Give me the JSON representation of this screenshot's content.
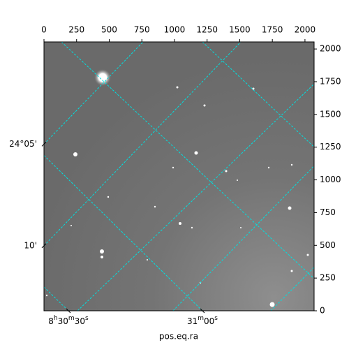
{
  "chart_data": {
    "type": "image",
    "xlabel": "pos.eq.ra",
    "xlim": [
      0,
      2070
    ],
    "ylim": [
      0,
      2054
    ],
    "xticks": [
      0,
      250,
      500,
      750,
      1000,
      1250,
      1500,
      1750,
      2000
    ],
    "yticks": [
      0,
      250,
      500,
      750,
      1000,
      1250,
      1500,
      1750,
      2000
    ],
    "ra_ticks": [
      {
        "value": 187,
        "label": "8h30m30s"
      },
      {
        "value": 1214,
        "label": "31m00s"
      }
    ],
    "dec_ticks": [
      {
        "value": 1273,
        "label": "24°05'"
      },
      {
        "value": 497,
        "label": "10'"
      }
    ],
    "grid": true,
    "grid_color": "#00e0e0",
    "ra_lines": [
      {
        "x": [
          134,
          2070
        ],
        "y": [
          2054,
          246
        ]
      },
      {
        "x": [
          0,
          1214
        ],
        "y": [
          1187,
          0
        ]
      },
      {
        "x": [
          1214,
          2070
        ],
        "y": [
          2054,
          1251
        ]
      },
      {
        "x": [
          0,
          187
        ],
        "y": [
          182,
          0
        ]
      }
    ],
    "dec_lines": [
      {
        "x": [
          0,
          759
        ],
        "y": [
          1273,
          2054
        ]
      },
      {
        "x": [
          0,
          1508
        ],
        "y": [
          497,
          2054
        ]
      },
      {
        "x": [
          257,
          2070
        ],
        "y": [
          0,
          1733
        ]
      },
      {
        "x": [
          989,
          2070
        ],
        "y": [
          0,
          1107
        ]
      },
      {
        "x": [
          1738,
          2070
        ],
        "y": [
          0,
          332
        ]
      }
    ]
  }
}
